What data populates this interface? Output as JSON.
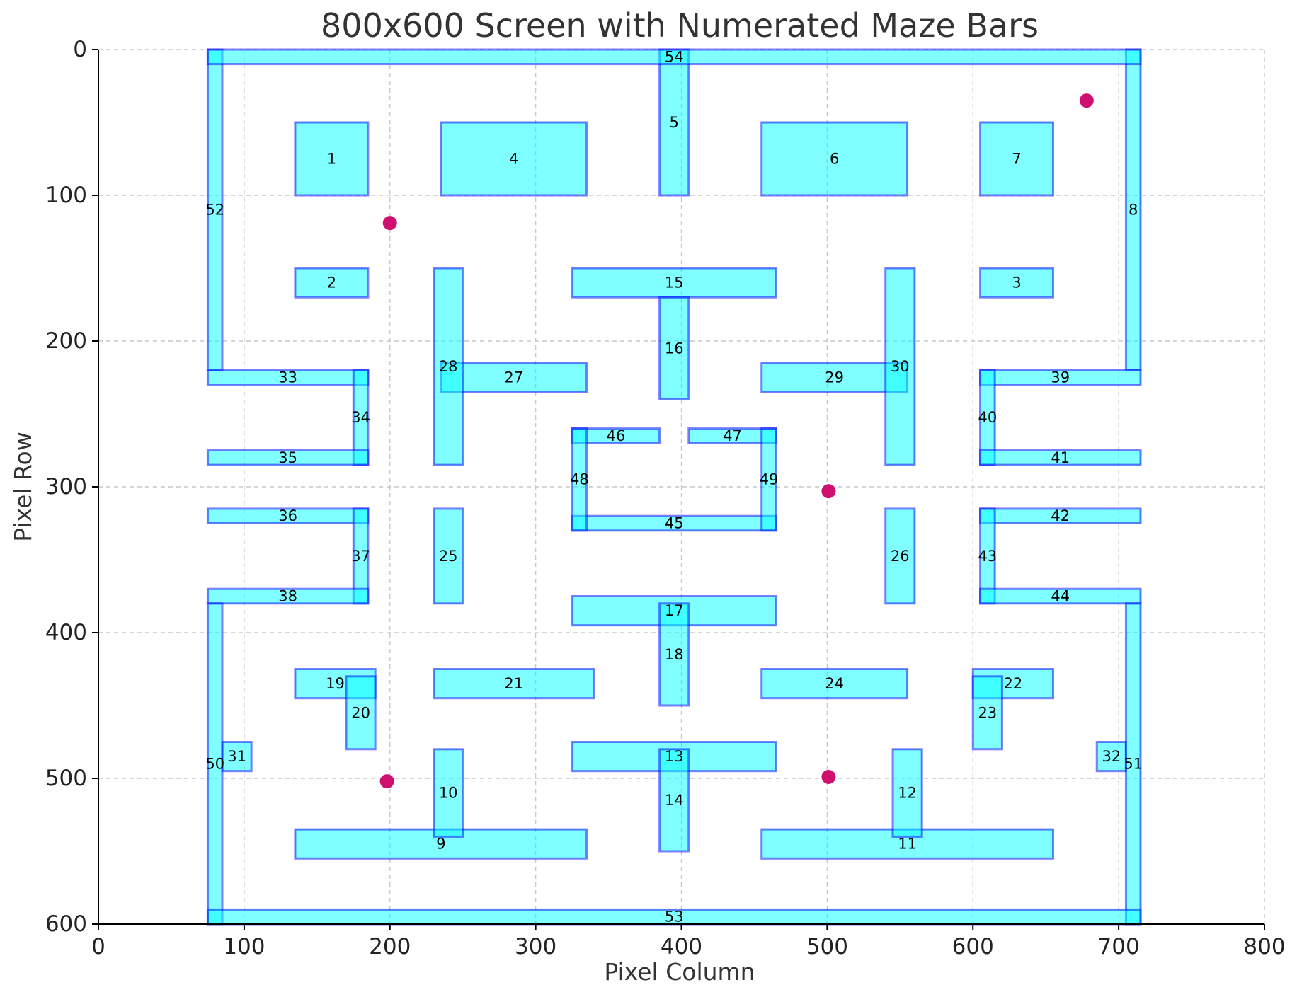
{
  "chart_data": {
    "type": "scatter",
    "title": "800x600 Screen with Numerated Maze Bars",
    "xlabel": "Pixel Column",
    "ylabel": "Pixel Row",
    "xlim": [
      0,
      800
    ],
    "ylim": [
      600,
      0
    ],
    "y_inverted": true,
    "grid": true,
    "xticks": [
      0,
      100,
      200,
      300,
      400,
      500,
      600,
      700,
      800
    ],
    "yticks": [
      0,
      100,
      200,
      300,
      400,
      500,
      600
    ],
    "bar_fill_color": "#00ffff",
    "bar_fill_opacity": 0.5,
    "bar_edge_color": "#0000ff",
    "bar_edge_opacity": 0.5,
    "point_color": "#d0106e",
    "bars": [
      {
        "id": "1",
        "x0": 135,
        "y0": 50,
        "x1": 185,
        "y1": 100
      },
      {
        "id": "2",
        "x0": 135,
        "y0": 150,
        "x1": 185,
        "y1": 170
      },
      {
        "id": "3",
        "x0": 605,
        "y0": 150,
        "x1": 655,
        "y1": 170
      },
      {
        "id": "4",
        "x0": 235,
        "y0": 50,
        "x1": 335,
        "y1": 100
      },
      {
        "id": "5",
        "x0": 385,
        "y0": 0,
        "x1": 405,
        "y1": 100
      },
      {
        "id": "6",
        "x0": 455,
        "y0": 50,
        "x1": 555,
        "y1": 100
      },
      {
        "id": "7",
        "x0": 605,
        "y0": 50,
        "x1": 655,
        "y1": 100
      },
      {
        "id": "8",
        "x0": 705,
        "y0": 0,
        "x1": 715,
        "y1": 220
      },
      {
        "id": "9",
        "x0": 135,
        "y0": 535,
        "x1": 335,
        "y1": 555
      },
      {
        "id": "10",
        "x0": 230,
        "y0": 480,
        "x1": 250,
        "y1": 540
      },
      {
        "id": "11",
        "x0": 455,
        "y0": 535,
        "x1": 655,
        "y1": 555
      },
      {
        "id": "12",
        "x0": 545,
        "y0": 480,
        "x1": 565,
        "y1": 540
      },
      {
        "id": "13",
        "x0": 325,
        "y0": 475,
        "x1": 465,
        "y1": 495
      },
      {
        "id": "14",
        "x0": 385,
        "y0": 480,
        "x1": 405,
        "y1": 550
      },
      {
        "id": "15",
        "x0": 325,
        "y0": 150,
        "x1": 465,
        "y1": 170
      },
      {
        "id": "16",
        "x0": 385,
        "y0": 170,
        "x1": 405,
        "y1": 240
      },
      {
        "id": "17",
        "x0": 325,
        "y0": 375,
        "x1": 465,
        "y1": 395
      },
      {
        "id": "18",
        "x0": 385,
        "y0": 380,
        "x1": 405,
        "y1": 450
      },
      {
        "id": "19",
        "x0": 135,
        "y0": 425,
        "x1": 190,
        "y1": 445
      },
      {
        "id": "20",
        "x0": 170,
        "y0": 430,
        "x1": 190,
        "y1": 480
      },
      {
        "id": "21",
        "x0": 230,
        "y0": 425,
        "x1": 340,
        "y1": 445
      },
      {
        "id": "22",
        "x0": 600,
        "y0": 425,
        "x1": 655,
        "y1": 445
      },
      {
        "id": "23",
        "x0": 600,
        "y0": 430,
        "x1": 620,
        "y1": 480
      },
      {
        "id": "24",
        "x0": 455,
        "y0": 425,
        "x1": 555,
        "y1": 445
      },
      {
        "id": "25",
        "x0": 230,
        "y0": 315,
        "x1": 250,
        "y1": 380
      },
      {
        "id": "26",
        "x0": 540,
        "y0": 315,
        "x1": 560,
        "y1": 380
      },
      {
        "id": "27",
        "x0": 235,
        "y0": 215,
        "x1": 335,
        "y1": 235
      },
      {
        "id": "28",
        "x0": 230,
        "y0": 150,
        "x1": 250,
        "y1": 285
      },
      {
        "id": "29",
        "x0": 455,
        "y0": 215,
        "x1": 555,
        "y1": 235
      },
      {
        "id": "30",
        "x0": 540,
        "y0": 150,
        "x1": 560,
        "y1": 285
      },
      {
        "id": "31",
        "x0": 85,
        "y0": 475,
        "x1": 105,
        "y1": 495
      },
      {
        "id": "32",
        "x0": 685,
        "y0": 475,
        "x1": 705,
        "y1": 495
      },
      {
        "id": "33",
        "x0": 75,
        "y0": 220,
        "x1": 185,
        "y1": 230
      },
      {
        "id": "34",
        "x0": 175,
        "y0": 220,
        "x1": 185,
        "y1": 285
      },
      {
        "id": "35",
        "x0": 75,
        "y0": 275,
        "x1": 185,
        "y1": 285
      },
      {
        "id": "36",
        "x0": 75,
        "y0": 315,
        "x1": 185,
        "y1": 325
      },
      {
        "id": "37",
        "x0": 175,
        "y0": 315,
        "x1": 185,
        "y1": 380
      },
      {
        "id": "38",
        "x0": 75,
        "y0": 370,
        "x1": 185,
        "y1": 380
      },
      {
        "id": "39",
        "x0": 605,
        "y0": 220,
        "x1": 715,
        "y1": 230
      },
      {
        "id": "40",
        "x0": 605,
        "y0": 220,
        "x1": 615,
        "y1": 285
      },
      {
        "id": "41",
        "x0": 605,
        "y0": 275,
        "x1": 715,
        "y1": 285
      },
      {
        "id": "42",
        "x0": 605,
        "y0": 315,
        "x1": 715,
        "y1": 325
      },
      {
        "id": "43",
        "x0": 605,
        "y0": 315,
        "x1": 615,
        "y1": 380
      },
      {
        "id": "44",
        "x0": 605,
        "y0": 370,
        "x1": 715,
        "y1": 380
      },
      {
        "id": "45",
        "x0": 325,
        "y0": 320,
        "x1": 465,
        "y1": 330
      },
      {
        "id": "46",
        "x0": 325,
        "y0": 260,
        "x1": 385,
        "y1": 270
      },
      {
        "id": "47",
        "x0": 405,
        "y0": 260,
        "x1": 465,
        "y1": 270
      },
      {
        "id": "48",
        "x0": 325,
        "y0": 260,
        "x1": 335,
        "y1": 330
      },
      {
        "id": "49",
        "x0": 455,
        "y0": 260,
        "x1": 465,
        "y1": 330
      },
      {
        "id": "50",
        "x0": 75,
        "y0": 380,
        "x1": 85,
        "y1": 600
      },
      {
        "id": "51",
        "x0": 705,
        "y0": 380,
        "x1": 715,
        "y1": 600
      },
      {
        "id": "52",
        "x0": 75,
        "y0": 0,
        "x1": 85,
        "y1": 220
      },
      {
        "id": "53",
        "x0": 75,
        "y0": 590,
        "x1": 715,
        "y1": 600
      },
      {
        "id": "54",
        "x0": 75,
        "y0": 0,
        "x1": 715,
        "y1": 10
      }
    ],
    "points": [
      {
        "x": 678,
        "y": 35
      },
      {
        "x": 200,
        "y": 119
      },
      {
        "x": 501,
        "y": 303
      },
      {
        "x": 198,
        "y": 502
      },
      {
        "x": 501,
        "y": 499
      }
    ]
  }
}
